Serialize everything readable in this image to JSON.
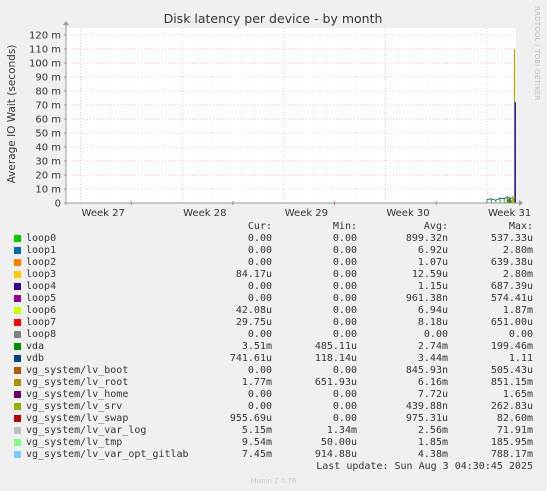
{
  "chart_data": {
    "type": "area",
    "title": "Disk latency per device - by month",
    "ylabel": "Average IO Wait (seconds)",
    "xlabel": "",
    "ylim": [
      0,
      0.125
    ],
    "yticks": [
      {
        "value": 0,
        "label": "0"
      },
      {
        "value": 0.01,
        "label": "10 m"
      },
      {
        "value": 0.02,
        "label": "20 m"
      },
      {
        "value": 0.03,
        "label": "30 m"
      },
      {
        "value": 0.04,
        "label": "40 m"
      },
      {
        "value": 0.05,
        "label": "50 m"
      },
      {
        "value": 0.06,
        "label": "60 m"
      },
      {
        "value": 0.07,
        "label": "70 m"
      },
      {
        "value": 0.08,
        "label": "80 m"
      },
      {
        "value": 0.09,
        "label": "90 m"
      },
      {
        "value": 0.1,
        "label": "100 m"
      },
      {
        "value": 0.11,
        "label": "110 m"
      },
      {
        "value": 0.12,
        "label": "120 m"
      }
    ],
    "xrange": [
      0,
      31
    ],
    "xticks": [
      {
        "value": 1.0,
        "label": "Week 27"
      },
      {
        "value": 8.0,
        "label": "Week 28"
      },
      {
        "value": 15.0,
        "label": "Week 29"
      },
      {
        "value": 22.0,
        "label": "Week 30"
      },
      {
        "value": 29.0,
        "label": "Week 31"
      }
    ],
    "day_markers": [
      4.5,
      11.5,
      18.5,
      25.5
    ],
    "grid": true,
    "spikes": [
      {
        "x": 30.45,
        "y": 0.0028,
        "color": "#006600"
      },
      {
        "x": 30.55,
        "y": 0.004,
        "color": "#008f00"
      },
      {
        "x": 30.65,
        "y": 0.002,
        "color": "#cc0000"
      },
      {
        "x": 30.75,
        "y": 0.0055,
        "color": "#ccbb00"
      },
      {
        "x": 30.85,
        "y": 0.003,
        "color": "#aa9900"
      },
      {
        "x": 30.9,
        "y": 0.11,
        "color": "#b8a200"
      },
      {
        "x": 30.95,
        "y": 0.072,
        "color": "#0000cc"
      }
    ],
    "baseline_noise": [
      {
        "x": 29.0,
        "y": 0.0025
      },
      {
        "x": 29.3,
        "y": 0.003
      },
      {
        "x": 29.6,
        "y": 0.002
      },
      {
        "x": 29.9,
        "y": 0.0035
      },
      {
        "x": 30.2,
        "y": 0.003
      },
      {
        "x": 30.4,
        "y": 0.0045
      },
      {
        "x": 30.6,
        "y": 0.003
      },
      {
        "x": 30.8,
        "y": 0.004
      }
    ],
    "series_colors": [
      "#00cc00",
      "#0066b3",
      "#ff8000",
      "#ffcc00",
      "#330099",
      "#990099",
      "#ccff00",
      "#ff0000",
      "#808080",
      "#008f00",
      "#00487d",
      "#b35a00",
      "#b38f00",
      "#6b006b",
      "#8fb300",
      "#b30000",
      "#bebebe",
      "#80ff80",
      "#80c9ff"
    ]
  },
  "legend": {
    "headers": {
      "cur": "Cur:",
      "min": "Min:",
      "avg": "Avg:",
      "max": "Max:"
    },
    "rows": [
      {
        "name": "loop0",
        "cur": "0.00",
        "min": "0.00",
        "avg": "899.32n",
        "max": "537.33u"
      },
      {
        "name": "loop1",
        "cur": "0.00",
        "min": "0.00",
        "avg": "6.92u",
        "max": "2.80m"
      },
      {
        "name": "loop2",
        "cur": "0.00",
        "min": "0.00",
        "avg": "1.07u",
        "max": "639.38u"
      },
      {
        "name": "loop3",
        "cur": "84.17u",
        "min": "0.00",
        "avg": "12.59u",
        "max": "2.80m"
      },
      {
        "name": "loop4",
        "cur": "0.00",
        "min": "0.00",
        "avg": "1.15u",
        "max": "687.39u"
      },
      {
        "name": "loop5",
        "cur": "0.00",
        "min": "0.00",
        "avg": "961.38n",
        "max": "574.41u"
      },
      {
        "name": "loop6",
        "cur": "42.08u",
        "min": "0.00",
        "avg": "6.94u",
        "max": "1.87m"
      },
      {
        "name": "loop7",
        "cur": "29.75u",
        "min": "0.00",
        "avg": "8.18u",
        "max": "651.00u"
      },
      {
        "name": "loop8",
        "cur": "0.00",
        "min": "0.00",
        "avg": "0.00",
        "max": "0.00"
      },
      {
        "name": "vda",
        "cur": "3.51m",
        "min": "485.11u",
        "avg": "2.74m",
        "max": "199.46m"
      },
      {
        "name": "vdb",
        "cur": "741.61u",
        "min": "118.14u",
        "avg": "3.44m",
        "max": "1.11"
      },
      {
        "name": "vg_system/lv_boot",
        "cur": "0.00",
        "min": "0.00",
        "avg": "845.93n",
        "max": "505.43u"
      },
      {
        "name": "vg_system/lv_root",
        "cur": "1.77m",
        "min": "651.93u",
        "avg": "6.16m",
        "max": "851.15m"
      },
      {
        "name": "vg_system/lv_home",
        "cur": "0.00",
        "min": "0.00",
        "avg": "7.72u",
        "max": "1.65m"
      },
      {
        "name": "vg_system/lv_srv",
        "cur": "0.00",
        "min": "0.00",
        "avg": "439.88n",
        "max": "262.83u"
      },
      {
        "name": "vg_system/lv_swap",
        "cur": "955.69u",
        "min": "0.00",
        "avg": "975.31u",
        "max": "82.60m"
      },
      {
        "name": "vg_system/lv_var_log",
        "cur": "5.15m",
        "min": "1.34m",
        "avg": "2.56m",
        "max": "71.91m"
      },
      {
        "name": "vg_system/lv_tmp",
        "cur": "9.54m",
        "min": "50.00u",
        "avg": "1.85m",
        "max": "185.95m"
      },
      {
        "name": "vg_system/lv_var_opt_gitlab",
        "cur": "7.45m",
        "min": "914.88u",
        "avg": "4.38m",
        "max": "788.17m"
      }
    ]
  },
  "last_update": "Last update: Sun Aug  3 04:30:45 2025",
  "footer": "Munin 2.0.76",
  "side_text": "RRDTOOL / TOBI OETIKER"
}
